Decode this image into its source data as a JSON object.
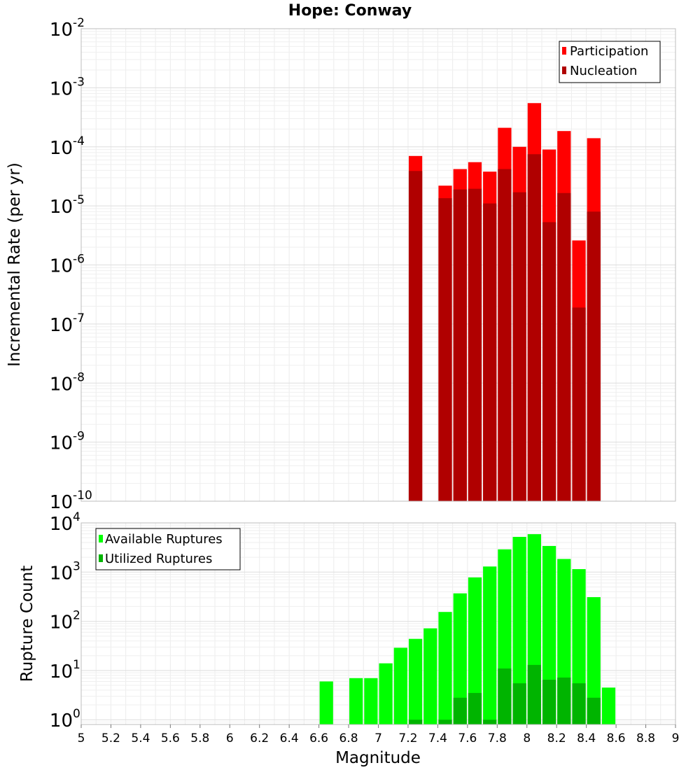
{
  "title": "Hope: Conway",
  "chart_data": [
    {
      "type": "bar",
      "ylabel": "Incremental Rate (per yr)",
      "xlabel": "",
      "ylog": true,
      "ylim": [
        1e-10,
        0.01
      ],
      "xlim": [
        5,
        9
      ],
      "grid": true,
      "legend_position": "top-right",
      "y_ticks": [
        {
          "base": "10",
          "exp": "-2"
        },
        {
          "base": "10",
          "exp": "-3"
        },
        {
          "base": "10",
          "exp": "-4"
        },
        {
          "base": "10",
          "exp": "-5"
        },
        {
          "base": "10",
          "exp": "-6"
        },
        {
          "base": "10",
          "exp": "-7"
        },
        {
          "base": "10",
          "exp": "-8"
        },
        {
          "base": "10",
          "exp": "-9"
        },
        {
          "base": "10",
          "exp": "-10"
        }
      ],
      "bar_width": 0.1,
      "series": [
        {
          "name": "Participation",
          "color": "#ff0000",
          "x": [
            7.25,
            7.45,
            7.55,
            7.65,
            7.75,
            7.85,
            7.95,
            8.05,
            8.15,
            8.25,
            8.35,
            8.45
          ],
          "values": [
            7e-05,
            2.2e-05,
            4.2e-05,
            5.5e-05,
            3.8e-05,
            0.00021,
            0.0001,
            0.00055,
            9e-05,
            0.000185,
            2.6e-06,
            0.00014
          ]
        },
        {
          "name": "Nucleation",
          "color": "#b00000",
          "x": [
            7.25,
            7.45,
            7.55,
            7.65,
            7.75,
            7.85,
            7.95,
            8.05,
            8.15,
            8.25,
            8.35,
            8.45
          ],
          "values": [
            3.9e-05,
            1.35e-05,
            1.9e-05,
            1.95e-05,
            1.1e-05,
            4.2e-05,
            1.7e-05,
            7.5e-05,
            5.3e-06,
            1.65e-05,
            1.9e-07,
            8e-06
          ]
        }
      ]
    },
    {
      "type": "bar",
      "ylabel": "Rupture Count",
      "xlabel": "Magnitude",
      "ylog": true,
      "ylim": [
        0.8,
        10000
      ],
      "xlim": [
        5,
        9
      ],
      "grid": true,
      "legend_position": "top-left",
      "y_ticks": [
        {
          "base": "10",
          "exp": "4"
        },
        {
          "base": "10",
          "exp": "3"
        },
        {
          "base": "10",
          "exp": "2"
        },
        {
          "base": "10",
          "exp": "1"
        },
        {
          "base": "10",
          "exp": "0"
        }
      ],
      "x_ticks": [
        "5",
        "5.2",
        "5.4",
        "5.6",
        "5.8",
        "6",
        "6.2",
        "6.4",
        "6.6",
        "6.8",
        "7",
        "7.2",
        "7.4",
        "7.6",
        "7.8",
        "8",
        "8.2",
        "8.4",
        "8.6",
        "8.8",
        "9"
      ],
      "bar_width": 0.1,
      "series": [
        {
          "name": "Available Ruptures",
          "color": "#00ff00",
          "x": [
            6.65,
            6.85,
            6.95,
            7.05,
            7.15,
            7.25,
            7.35,
            7.45,
            7.55,
            7.65,
            7.75,
            7.85,
            7.95,
            8.05,
            8.15,
            8.25,
            8.35,
            8.45,
            8.55
          ],
          "values": [
            6,
            7,
            7,
            14,
            29,
            44,
            72,
            155,
            370,
            780,
            1300,
            2900,
            5200,
            5900,
            3400,
            1850,
            1150,
            310,
            4.5
          ]
        },
        {
          "name": "Utilized Ruptures",
          "color": "#00b400",
          "x": [
            7.25,
            7.45,
            7.55,
            7.65,
            7.75,
            7.85,
            7.95,
            8.05,
            8.15,
            8.25,
            8.35,
            8.45
          ],
          "values": [
            1,
            1,
            2.8,
            3.5,
            1,
            11,
            5.5,
            13,
            6.5,
            7.2,
            5.5,
            2.8
          ]
        }
      ]
    }
  ]
}
